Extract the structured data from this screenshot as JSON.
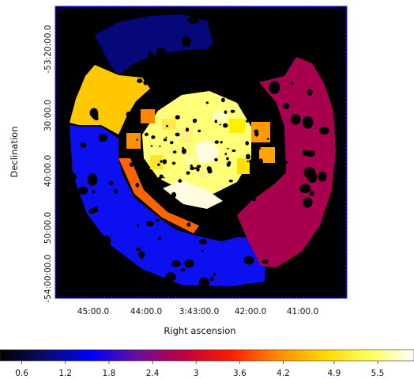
{
  "chart_data": {
    "type": "heatmap",
    "title": "",
    "xlabel": "Right ascension",
    "ylabel": "Declination",
    "x_ticks": [
      "45:00.0",
      "44:00.0",
      "3:43:00.0",
      "42:00.0",
      "41:00.0"
    ],
    "y_ticks": [
      "-53:20:00.0",
      "30:00.0",
      "40:00.0",
      "50:00.0",
      "-54:00:00.0"
    ],
    "colorbar": {
      "ticks": [
        "0.6",
        "1.2",
        "1.8",
        "2.4",
        "3",
        "3.6",
        "4.2",
        "4.9",
        "5.5"
      ],
      "tick_values": [
        0.6,
        1.2,
        1.8,
        2.4,
        3.0,
        3.6,
        4.2,
        4.9,
        5.5
      ],
      "range": [
        0.3,
        6.0
      ],
      "colormap": [
        "#000000",
        "#0b0b6e",
        "#0000ff",
        "#6a0f9a",
        "#c0003c",
        "#ff1a00",
        "#ff8800",
        "#ffd400",
        "#ffff55",
        "#ffffff"
      ]
    },
    "regions": [
      {
        "name": "outer-north-segment",
        "value": 1.0,
        "color": "#06087a"
      },
      {
        "name": "outer-southeast-segment",
        "value": 1.45,
        "color": "#0c10f0"
      },
      {
        "name": "outer-west-segment",
        "value": 2.8,
        "color": "#a8004e"
      },
      {
        "name": "outer-northeast-segment",
        "value": 4.45,
        "color": "#ffc800"
      },
      {
        "name": "middle-ring",
        "value": 3.9,
        "color": "#ff7e00"
      },
      {
        "name": "middle-ring-dark-patch",
        "value": 3.6,
        "color": "#ff6200"
      },
      {
        "name": "inner-disk",
        "value": 4.95,
        "color": "#f6ee1c"
      },
      {
        "name": "inner-core",
        "value": 5.3,
        "color": "#ffff78"
      },
      {
        "name": "bright-patch",
        "value": 5.9,
        "color": "#fffce0"
      }
    ],
    "background": "#000000",
    "masked_sources": "black",
    "grid": false
  }
}
